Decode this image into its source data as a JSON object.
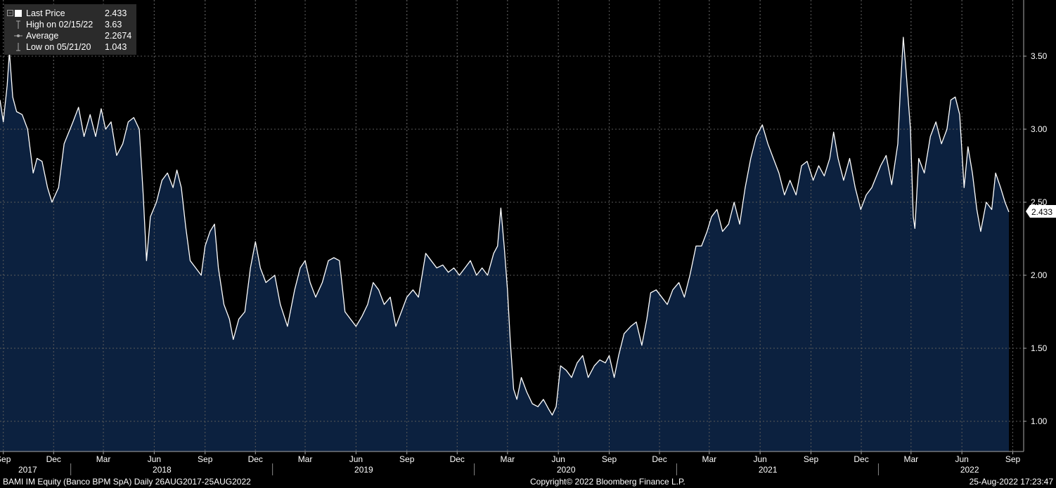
{
  "legend": {
    "last_price_label": "Last Price",
    "last_price_value": "2.433",
    "high_label": "High on 02/15/22",
    "high_value": "3.63",
    "average_label": "Average",
    "average_value": "2.2674",
    "low_label": "Low on 05/21/20",
    "low_value": "1.043"
  },
  "price_tag": "2.433",
  "footer": {
    "left": "BAMI IM Equity (Banco BPM SpA)  Daily 26AUG2017-25AUG2022",
    "center": "Copyright© 2022 Bloomberg Finance L.P.",
    "right": "25-Aug-2022 17:23:47"
  },
  "colors": {
    "background": "#000000",
    "area_fill": "#0c213f",
    "line": "#ffffff",
    "legend_bg": "#2b2b2b"
  },
  "chart_data": {
    "type": "area",
    "title": "",
    "xlabel": "",
    "ylabel": "",
    "ylim": [
      0.8,
      3.8
    ],
    "x_range": [
      "2017-08-26",
      "2022-08-25"
    ],
    "y_ticks": [
      "1.00",
      "1.50",
      "2.00",
      "2.50",
      "3.00",
      "3.50"
    ],
    "month_ticks": [
      {
        "date": "2017-09-01",
        "label": "Sep"
      },
      {
        "date": "2017-12-01",
        "label": "Dec"
      },
      {
        "date": "2018-03-01",
        "label": "Mar"
      },
      {
        "date": "2018-06-01",
        "label": "Jun"
      },
      {
        "date": "2018-09-01",
        "label": "Sep"
      },
      {
        "date": "2018-12-01",
        "label": "Dec"
      },
      {
        "date": "2019-03-01",
        "label": "Mar"
      },
      {
        "date": "2019-06-01",
        "label": "Jun"
      },
      {
        "date": "2019-09-01",
        "label": "Sep"
      },
      {
        "date": "2019-12-01",
        "label": "Dec"
      },
      {
        "date": "2020-03-01",
        "label": "Mar"
      },
      {
        "date": "2020-06-01",
        "label": "Jun"
      },
      {
        "date": "2020-09-01",
        "label": "Sep"
      },
      {
        "date": "2020-12-01",
        "label": "Dec"
      },
      {
        "date": "2021-03-01",
        "label": "Mar"
      },
      {
        "date": "2021-06-01",
        "label": "Jun"
      },
      {
        "date": "2021-09-01",
        "label": "Sep"
      },
      {
        "date": "2021-12-01",
        "label": "Dec"
      },
      {
        "date": "2022-03-01",
        "label": "Mar"
      },
      {
        "date": "2022-06-01",
        "label": "Jun"
      },
      {
        "date": "2022-09-01",
        "label": "Sep"
      }
    ],
    "year_labels": [
      {
        "date": "2017-10-15",
        "label": "2017"
      },
      {
        "date": "2018-06-15",
        "label": "2018"
      },
      {
        "date": "2019-06-15",
        "label": "2019"
      },
      {
        "date": "2020-06-15",
        "label": "2020"
      },
      {
        "date": "2021-06-15",
        "label": "2021"
      },
      {
        "date": "2022-06-15",
        "label": "2022"
      }
    ],
    "year_dividers": [
      "2018-01-01",
      "2019-01-01",
      "2020-01-01",
      "2021-01-01",
      "2022-01-01"
    ],
    "series": [
      {
        "name": "Last Price",
        "points": [
          [
            "2017-08-26",
            3.2
          ],
          [
            "2017-09-01",
            3.05
          ],
          [
            "2017-09-08",
            3.3
          ],
          [
            "2017-09-12",
            3.53
          ],
          [
            "2017-09-18",
            3.22
          ],
          [
            "2017-09-25",
            3.12
          ],
          [
            "2017-10-05",
            3.1
          ],
          [
            "2017-10-15",
            3.0
          ],
          [
            "2017-10-25",
            2.7
          ],
          [
            "2017-11-01",
            2.8
          ],
          [
            "2017-11-10",
            2.78
          ],
          [
            "2017-11-20",
            2.6
          ],
          [
            "2017-11-28",
            2.5
          ],
          [
            "2017-12-10",
            2.6
          ],
          [
            "2017-12-20",
            2.9
          ],
          [
            "2018-01-05",
            3.05
          ],
          [
            "2018-01-15",
            3.15
          ],
          [
            "2018-01-25",
            2.95
          ],
          [
            "2018-02-05",
            3.1
          ],
          [
            "2018-02-15",
            2.95
          ],
          [
            "2018-02-25",
            3.14
          ],
          [
            "2018-03-05",
            3.0
          ],
          [
            "2018-03-15",
            3.05
          ],
          [
            "2018-03-25",
            2.82
          ],
          [
            "2018-04-05",
            2.9
          ],
          [
            "2018-04-15",
            3.05
          ],
          [
            "2018-04-25",
            3.08
          ],
          [
            "2018-05-05",
            3.0
          ],
          [
            "2018-05-12",
            2.55
          ],
          [
            "2018-05-18",
            2.1
          ],
          [
            "2018-05-25",
            2.4
          ],
          [
            "2018-06-05",
            2.5
          ],
          [
            "2018-06-15",
            2.65
          ],
          [
            "2018-06-25",
            2.7
          ],
          [
            "2018-07-05",
            2.6
          ],
          [
            "2018-07-12",
            2.72
          ],
          [
            "2018-07-20",
            2.6
          ],
          [
            "2018-07-28",
            2.33
          ],
          [
            "2018-08-05",
            2.1
          ],
          [
            "2018-08-15",
            2.05
          ],
          [
            "2018-08-25",
            2.0
          ],
          [
            "2018-09-01",
            2.2
          ],
          [
            "2018-09-10",
            2.3
          ],
          [
            "2018-09-18",
            2.35
          ],
          [
            "2018-09-25",
            2.05
          ],
          [
            "2018-10-05",
            1.8
          ],
          [
            "2018-10-15",
            1.7
          ],
          [
            "2018-10-22",
            1.56
          ],
          [
            "2018-11-01",
            1.7
          ],
          [
            "2018-11-12",
            1.75
          ],
          [
            "2018-11-22",
            2.05
          ],
          [
            "2018-12-01",
            2.23
          ],
          [
            "2018-12-10",
            2.05
          ],
          [
            "2018-12-20",
            1.95
          ],
          [
            "2019-01-05",
            2.0
          ],
          [
            "2019-01-15",
            1.8
          ],
          [
            "2019-01-28",
            1.65
          ],
          [
            "2019-02-10",
            1.9
          ],
          [
            "2019-02-20",
            2.05
          ],
          [
            "2019-03-01",
            2.1
          ],
          [
            "2019-03-10",
            1.95
          ],
          [
            "2019-03-20",
            1.85
          ],
          [
            "2019-04-01",
            1.95
          ],
          [
            "2019-04-12",
            2.1
          ],
          [
            "2019-04-22",
            2.12
          ],
          [
            "2019-05-02",
            2.1
          ],
          [
            "2019-05-12",
            1.75
          ],
          [
            "2019-05-22",
            1.7
          ],
          [
            "2019-06-01",
            1.65
          ],
          [
            "2019-06-12",
            1.72
          ],
          [
            "2019-06-22",
            1.8
          ],
          [
            "2019-07-02",
            1.95
          ],
          [
            "2019-07-12",
            1.9
          ],
          [
            "2019-07-22",
            1.8
          ],
          [
            "2019-08-02",
            1.85
          ],
          [
            "2019-08-12",
            1.65
          ],
          [
            "2019-08-22",
            1.75
          ],
          [
            "2019-09-01",
            1.85
          ],
          [
            "2019-09-12",
            1.9
          ],
          [
            "2019-09-22",
            1.85
          ],
          [
            "2019-10-05",
            2.15
          ],
          [
            "2019-10-15",
            2.1
          ],
          [
            "2019-10-25",
            2.05
          ],
          [
            "2019-11-05",
            2.07
          ],
          [
            "2019-11-15",
            2.02
          ],
          [
            "2019-11-25",
            2.05
          ],
          [
            "2019-12-05",
            2.0
          ],
          [
            "2019-12-15",
            2.05
          ],
          [
            "2019-12-25",
            2.1
          ],
          [
            "2020-01-05",
            2.0
          ],
          [
            "2020-01-15",
            2.05
          ],
          [
            "2020-01-25",
            2.0
          ],
          [
            "2020-02-05",
            2.15
          ],
          [
            "2020-02-12",
            2.2
          ],
          [
            "2020-02-18",
            2.46
          ],
          [
            "2020-02-24",
            2.2
          ],
          [
            "2020-03-01",
            1.9
          ],
          [
            "2020-03-06",
            1.55
          ],
          [
            "2020-03-12",
            1.22
          ],
          [
            "2020-03-18",
            1.15
          ],
          [
            "2020-03-26",
            1.3
          ],
          [
            "2020-04-05",
            1.2
          ],
          [
            "2020-04-15",
            1.12
          ],
          [
            "2020-04-25",
            1.1
          ],
          [
            "2020-05-05",
            1.15
          ],
          [
            "2020-05-15",
            1.08
          ],
          [
            "2020-05-21",
            1.043
          ],
          [
            "2020-05-28",
            1.1
          ],
          [
            "2020-06-05",
            1.38
          ],
          [
            "2020-06-15",
            1.35
          ],
          [
            "2020-06-25",
            1.3
          ],
          [
            "2020-07-05",
            1.4
          ],
          [
            "2020-07-15",
            1.45
          ],
          [
            "2020-07-25",
            1.3
          ],
          [
            "2020-08-05",
            1.38
          ],
          [
            "2020-08-15",
            1.42
          ],
          [
            "2020-08-25",
            1.4
          ],
          [
            "2020-09-01",
            1.45
          ],
          [
            "2020-09-10",
            1.3
          ],
          [
            "2020-09-18",
            1.45
          ],
          [
            "2020-09-28",
            1.6
          ],
          [
            "2020-10-10",
            1.65
          ],
          [
            "2020-10-20",
            1.68
          ],
          [
            "2020-10-30",
            1.52
          ],
          [
            "2020-11-08",
            1.7
          ],
          [
            "2020-11-15",
            1.88
          ],
          [
            "2020-11-25",
            1.9
          ],
          [
            "2020-12-05",
            1.85
          ],
          [
            "2020-12-15",
            1.8
          ],
          [
            "2020-12-25",
            1.9
          ],
          [
            "2021-01-05",
            1.95
          ],
          [
            "2021-01-15",
            1.85
          ],
          [
            "2021-01-25",
            2.0
          ],
          [
            "2021-02-05",
            2.2
          ],
          [
            "2021-02-15",
            2.2
          ],
          [
            "2021-02-25",
            2.3
          ],
          [
            "2021-03-05",
            2.4
          ],
          [
            "2021-03-15",
            2.45
          ],
          [
            "2021-03-25",
            2.3
          ],
          [
            "2021-04-05",
            2.35
          ],
          [
            "2021-04-15",
            2.5
          ],
          [
            "2021-04-25",
            2.35
          ],
          [
            "2021-05-05",
            2.6
          ],
          [
            "2021-05-15",
            2.8
          ],
          [
            "2021-05-25",
            2.95
          ],
          [
            "2021-06-05",
            3.03
          ],
          [
            "2021-06-15",
            2.9
          ],
          [
            "2021-06-25",
            2.8
          ],
          [
            "2021-07-05",
            2.7
          ],
          [
            "2021-07-15",
            2.55
          ],
          [
            "2021-07-25",
            2.65
          ],
          [
            "2021-08-05",
            2.55
          ],
          [
            "2021-08-15",
            2.75
          ],
          [
            "2021-08-25",
            2.78
          ],
          [
            "2021-09-05",
            2.65
          ],
          [
            "2021-09-15",
            2.75
          ],
          [
            "2021-09-25",
            2.68
          ],
          [
            "2021-10-05",
            2.8
          ],
          [
            "2021-10-12",
            2.98
          ],
          [
            "2021-10-20",
            2.8
          ],
          [
            "2021-10-30",
            2.65
          ],
          [
            "2021-11-10",
            2.8
          ],
          [
            "2021-11-20",
            2.6
          ],
          [
            "2021-11-30",
            2.45
          ],
          [
            "2021-12-10",
            2.55
          ],
          [
            "2021-12-20",
            2.6
          ],
          [
            "2022-01-05",
            2.75
          ],
          [
            "2022-01-15",
            2.82
          ],
          [
            "2022-01-25",
            2.62
          ],
          [
            "2022-02-05",
            2.9
          ],
          [
            "2022-02-10",
            3.3
          ],
          [
            "2022-02-15",
            3.63
          ],
          [
            "2022-02-20",
            3.4
          ],
          [
            "2022-02-28",
            3.0
          ],
          [
            "2022-03-05",
            2.4
          ],
          [
            "2022-03-08",
            2.32
          ],
          [
            "2022-03-15",
            2.8
          ],
          [
            "2022-03-25",
            2.7
          ],
          [
            "2022-04-05",
            2.95
          ],
          [
            "2022-04-15",
            3.05
          ],
          [
            "2022-04-25",
            2.9
          ],
          [
            "2022-05-05",
            3.0
          ],
          [
            "2022-05-12",
            3.2
          ],
          [
            "2022-05-20",
            3.22
          ],
          [
            "2022-05-28",
            3.1
          ],
          [
            "2022-06-05",
            2.6
          ],
          [
            "2022-06-12",
            2.88
          ],
          [
            "2022-06-20",
            2.7
          ],
          [
            "2022-06-28",
            2.45
          ],
          [
            "2022-07-05",
            2.3
          ],
          [
            "2022-07-15",
            2.5
          ],
          [
            "2022-07-25",
            2.45
          ],
          [
            "2022-08-01",
            2.7
          ],
          [
            "2022-08-10",
            2.6
          ],
          [
            "2022-08-18",
            2.5
          ],
          [
            "2022-08-25",
            2.433
          ]
        ]
      }
    ]
  }
}
